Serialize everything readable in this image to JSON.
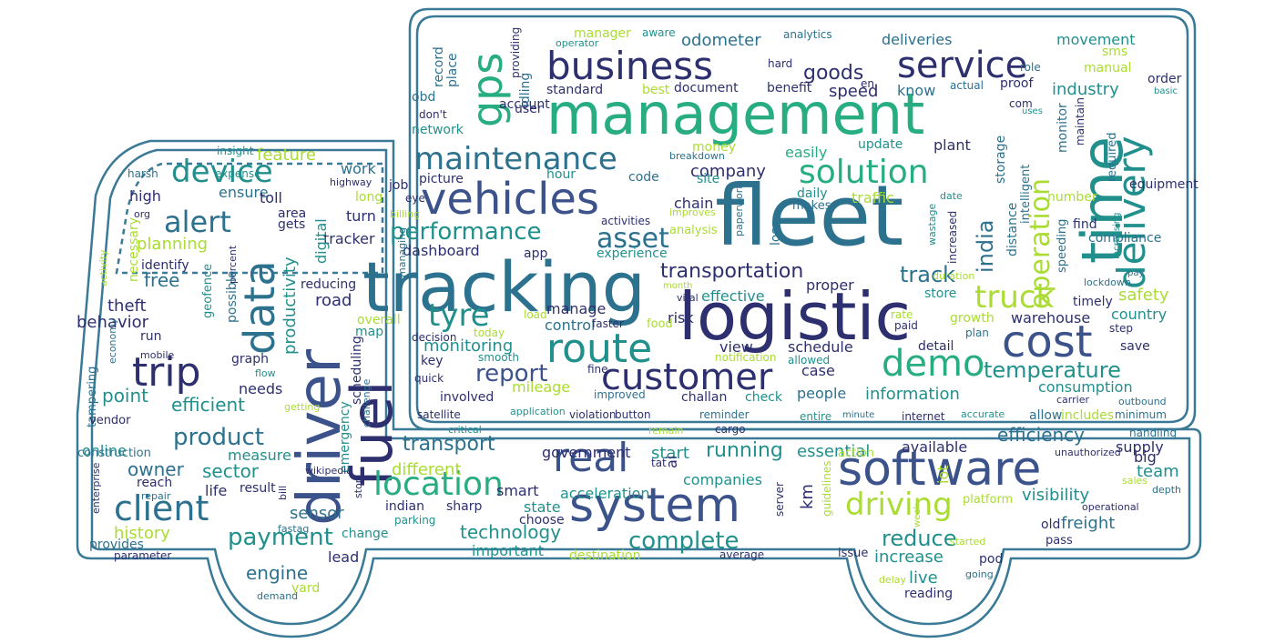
{
  "palette": {
    "outline": "#3a7a96",
    "d1": "#2d2f6e",
    "d2": "#3b528b",
    "m1": "#2c718e",
    "m2": "#21908d",
    "m3": "#27ad81",
    "l1": "#5cc863",
    "l2": "#aadc32",
    "l3": "#d2e21b"
  },
  "words": [
    {
      "t": "management",
      "c": "m3"
    },
    {
      "t": "fleet",
      "c": "m1"
    },
    {
      "t": "tracking",
      "c": "m1"
    },
    {
      "t": "logistic",
      "c": "d1"
    },
    {
      "t": "driver",
      "c": "d2"
    },
    {
      "t": "system",
      "c": "d2"
    },
    {
      "t": "software",
      "c": "d2"
    },
    {
      "t": "fuel",
      "c": "d1"
    },
    {
      "t": "time",
      "c": "m2"
    },
    {
      "t": "vehicles",
      "c": "d2"
    },
    {
      "t": "business",
      "c": "d1"
    },
    {
      "t": "service",
      "c": "d1"
    },
    {
      "t": "customer",
      "c": "d1"
    },
    {
      "t": "cost",
      "c": "d2"
    },
    {
      "t": "real",
      "c": "d2"
    },
    {
      "t": "route",
      "c": "m2"
    },
    {
      "t": "delivery",
      "c": "m2"
    },
    {
      "t": "gps",
      "c": "m3"
    },
    {
      "t": "data",
      "c": "m1"
    },
    {
      "t": "trip",
      "c": "d1"
    },
    {
      "t": "location",
      "c": "m3"
    },
    {
      "t": "client",
      "c": "m1"
    },
    {
      "t": "maintenance",
      "c": "m1"
    },
    {
      "t": "solution",
      "c": "m3"
    },
    {
      "t": "truck",
      "c": "l2"
    },
    {
      "t": "driving",
      "c": "l2"
    },
    {
      "t": "demo",
      "c": "m3"
    },
    {
      "t": "operation",
      "c": "l2"
    },
    {
      "t": "device",
      "c": "m2"
    },
    {
      "t": "alert",
      "c": "m1"
    },
    {
      "t": "tyre",
      "c": "m2"
    },
    {
      "t": "asset",
      "c": "m1"
    },
    {
      "t": "performance",
      "c": "m2"
    },
    {
      "t": "report",
      "c": "d2"
    },
    {
      "t": "complete",
      "c": "m2"
    },
    {
      "t": "payment",
      "c": "m2"
    },
    {
      "t": "product",
      "c": "m1"
    },
    {
      "t": "transportation",
      "c": "d1"
    },
    {
      "t": "temperature",
      "c": "m2"
    },
    {
      "t": "running",
      "c": "m2"
    },
    {
      "t": "goods",
      "c": "d1"
    },
    {
      "t": "track",
      "c": "m1"
    },
    {
      "t": "india",
      "c": "m1"
    },
    {
      "t": "transport",
      "c": "m1"
    },
    {
      "t": "efficiency",
      "c": "m1"
    },
    {
      "t": "reduce",
      "c": "m2"
    },
    {
      "t": "technology",
      "c": "m2"
    },
    {
      "t": "sector",
      "c": "m2"
    },
    {
      "t": "owner",
      "c": "m1"
    },
    {
      "t": "engine",
      "c": "m1"
    },
    {
      "t": "point",
      "c": "m2"
    },
    {
      "t": "efficient",
      "c": "m2"
    },
    {
      "t": "feature",
      "c": "l2"
    },
    {
      "t": "planning",
      "c": "l2"
    },
    {
      "t": "history",
      "c": "l2"
    },
    {
      "t": "odometer",
      "c": "m1"
    },
    {
      "t": "deliveries",
      "c": "m1"
    },
    {
      "t": "movement",
      "c": "m2"
    },
    {
      "t": "speed",
      "c": "d1"
    },
    {
      "t": "know",
      "c": "m1"
    },
    {
      "t": "industry",
      "c": "m2"
    },
    {
      "t": "company",
      "c": "d1"
    },
    {
      "t": "dashboard",
      "c": "d1"
    },
    {
      "t": "monitoring",
      "c": "m2"
    },
    {
      "t": "information",
      "c": "m2"
    },
    {
      "t": "consumption",
      "c": "m2"
    },
    {
      "t": "visibility",
      "c": "m2"
    },
    {
      "t": "safety",
      "c": "l2"
    },
    {
      "t": "warehouse",
      "c": "d1"
    },
    {
      "t": "country",
      "c": "m2"
    },
    {
      "t": "freight",
      "c": "m1"
    },
    {
      "t": "supply",
      "c": "d1"
    },
    {
      "t": "team",
      "c": "m2"
    },
    {
      "t": "increase",
      "c": "m2"
    },
    {
      "t": "live",
      "c": "m2"
    },
    {
      "t": "productivity",
      "c": "m2"
    },
    {
      "t": "sensor",
      "c": "m1"
    },
    {
      "t": "free",
      "c": "m1"
    },
    {
      "t": "behavior",
      "c": "d1"
    },
    {
      "t": "theft",
      "c": "d1"
    },
    {
      "t": "high",
      "c": "d1"
    },
    {
      "t": "ensure",
      "c": "m1"
    },
    {
      "t": "toll",
      "c": "d1"
    },
    {
      "t": "work",
      "c": "m1"
    },
    {
      "t": "turn",
      "c": "d1"
    },
    {
      "t": "tracker",
      "c": "d1"
    },
    {
      "t": "road",
      "c": "d1"
    },
    {
      "t": "digital",
      "c": "m2"
    },
    {
      "t": "reducing",
      "c": "d1"
    },
    {
      "t": "manage",
      "c": "d1"
    },
    {
      "t": "risk",
      "c": "d1"
    },
    {
      "t": "control",
      "c": "m1"
    },
    {
      "t": "view",
      "c": "d1"
    },
    {
      "t": "schedule",
      "c": "d1"
    },
    {
      "t": "case",
      "c": "d1"
    },
    {
      "t": "people",
      "c": "m1"
    },
    {
      "t": "check",
      "c": "m2"
    },
    {
      "t": "challan",
      "c": "d1"
    },
    {
      "t": "mileage",
      "c": "l2"
    },
    {
      "t": "improved",
      "c": "m1"
    },
    {
      "t": "involved",
      "c": "d1"
    },
    {
      "t": "effective",
      "c": "m2"
    },
    {
      "t": "proper",
      "c": "d1"
    },
    {
      "t": "store",
      "c": "m2"
    },
    {
      "t": "traffic",
      "c": "l2"
    },
    {
      "t": "daily",
      "c": "m2"
    },
    {
      "t": "easily",
      "c": "m3"
    },
    {
      "t": "update",
      "c": "m2"
    },
    {
      "t": "plant",
      "c": "d1"
    },
    {
      "t": "money",
      "c": "l2"
    },
    {
      "t": "chain",
      "c": "d1"
    },
    {
      "t": "code",
      "c": "m1"
    },
    {
      "t": "hour",
      "c": "m2"
    },
    {
      "t": "picture",
      "c": "d1"
    },
    {
      "t": "account",
      "c": "d1"
    },
    {
      "t": "user",
      "c": "d1"
    },
    {
      "t": "benefit",
      "c": "d1"
    },
    {
      "t": "document",
      "c": "d1"
    },
    {
      "t": "best",
      "c": "l2"
    },
    {
      "t": "standard",
      "c": "d1"
    },
    {
      "t": "manual",
      "c": "l2"
    },
    {
      "t": "sms",
      "c": "l2"
    },
    {
      "t": "order",
      "c": "d1"
    },
    {
      "t": "role",
      "c": "m1"
    },
    {
      "t": "proof",
      "c": "d1"
    },
    {
      "t": "actual",
      "c": "m1"
    },
    {
      "t": "place",
      "c": "m1"
    },
    {
      "t": "record",
      "c": "m1"
    },
    {
      "t": "obd",
      "c": "m1"
    },
    {
      "t": "idling",
      "c": "m1"
    },
    {
      "t": "providing",
      "c": "d1"
    },
    {
      "t": "network",
      "c": "m2"
    },
    {
      "t": "don't",
      "c": "d1"
    },
    {
      "t": "manager",
      "c": "l2"
    },
    {
      "t": "analytics",
      "c": "m1"
    },
    {
      "t": "aware",
      "c": "m2"
    },
    {
      "t": "operator",
      "c": "m2"
    },
    {
      "t": "hard",
      "c": "d1"
    },
    {
      "t": "en",
      "c": "d1"
    },
    {
      "t": "com",
      "c": "d1"
    },
    {
      "t": "uses",
      "c": "m2"
    },
    {
      "t": "basic",
      "c": "m2"
    },
    {
      "t": "monitor",
      "c": "m1"
    },
    {
      "t": "maintain",
      "c": "d1"
    },
    {
      "t": "equipment",
      "c": "d1"
    },
    {
      "t": "required",
      "c": "m1"
    },
    {
      "t": "compliance",
      "c": "m1"
    },
    {
      "t": "distance",
      "c": "m1"
    },
    {
      "t": "intelligent",
      "c": "m1"
    },
    {
      "t": "storage",
      "c": "m1"
    },
    {
      "t": "number",
      "c": "l2"
    },
    {
      "t": "timely",
      "c": "d1"
    },
    {
      "t": "speeding",
      "c": "m1"
    },
    {
      "t": "find",
      "c": "d1"
    },
    {
      "t": "increased",
      "c": "d1"
    },
    {
      "t": "increasing",
      "c": "m2"
    },
    {
      "t": "lockdown",
      "c": "m1"
    },
    {
      "t": "pay",
      "c": "m1"
    },
    {
      "t": "step",
      "c": "d1"
    },
    {
      "t": "save",
      "c": "d1"
    },
    {
      "t": "growth",
      "c": "l2"
    },
    {
      "t": "plan",
      "c": "m1"
    },
    {
      "t": "rate",
      "c": "l2"
    },
    {
      "t": "paid",
      "c": "d1"
    },
    {
      "t": "detail",
      "c": "d1"
    },
    {
      "t": "loss",
      "c": "m1"
    },
    {
      "t": "makes",
      "c": "m1"
    },
    {
      "t": "paperwork",
      "c": "m1"
    },
    {
      "t": "wastage",
      "c": "m2"
    },
    {
      "t": "date",
      "c": "m2"
    },
    {
      "t": "duration",
      "c": "l2"
    },
    {
      "t": "vital",
      "c": "d1"
    },
    {
      "t": "month",
      "c": "l2"
    },
    {
      "t": "faster",
      "c": "d1"
    },
    {
      "t": "food",
      "c": "l2"
    },
    {
      "t": "analysis",
      "c": "l2"
    },
    {
      "t": "experience",
      "c": "m2"
    },
    {
      "t": "activities",
      "c": "d1"
    },
    {
      "t": "improves",
      "c": "l2"
    },
    {
      "t": "site",
      "c": "m2"
    },
    {
      "t": "breakdown",
      "c": "m1"
    },
    {
      "t": "app",
      "c": "d1"
    },
    {
      "t": "eye",
      "c": "d1"
    },
    {
      "t": "job",
      "c": "d1"
    },
    {
      "t": "billing",
      "c": "l2"
    },
    {
      "t": "area",
      "c": "d1"
    },
    {
      "t": "gets",
      "c": "d1"
    },
    {
      "t": "long",
      "c": "l2"
    },
    {
      "t": "highway",
      "c": "d1"
    },
    {
      "t": "org",
      "c": "d1"
    },
    {
      "t": "expense",
      "c": "m2"
    },
    {
      "t": "insight",
      "c": "m2"
    },
    {
      "t": "harsh",
      "c": "m1"
    },
    {
      "t": "identify",
      "c": "d1"
    },
    {
      "t": "necessary",
      "c": "l2"
    },
    {
      "t": "activity",
      "c": "l2"
    },
    {
      "t": "economy",
      "c": "m1"
    },
    {
      "t": "run",
      "c": "d1"
    },
    {
      "t": "mobile",
      "c": "d1"
    },
    {
      "t": "geofence",
      "c": "m2"
    },
    {
      "t": "percent",
      "c": "d1"
    },
    {
      "t": "possible",
      "c": "m1"
    },
    {
      "t": "graph",
      "c": "d1"
    },
    {
      "t": "flow",
      "c": "m2"
    },
    {
      "t": "needs",
      "c": "d1"
    },
    {
      "t": "tampering",
      "c": "m1"
    },
    {
      "t": "vendor",
      "c": "d1"
    },
    {
      "t": "getting",
      "c": "l2"
    },
    {
      "t": "managing",
      "c": "m1"
    },
    {
      "t": "map",
      "c": "m2"
    },
    {
      "t": "overall",
      "c": "l2"
    },
    {
      "t": "decision",
      "c": "d1"
    },
    {
      "t": "load",
      "c": "l2"
    },
    {
      "t": "today",
      "c": "l2"
    },
    {
      "t": "key",
      "c": "d1"
    },
    {
      "t": "smooth",
      "c": "m2"
    },
    {
      "t": "quick",
      "c": "d1"
    },
    {
      "t": "notification",
      "c": "l2"
    },
    {
      "t": "allowed",
      "c": "m2"
    },
    {
      "t": "fine",
      "c": "d1"
    },
    {
      "t": "scheduling",
      "c": "d1"
    },
    {
      "t": "challenge",
      "c": "m1"
    },
    {
      "t": "satellite",
      "c": "d1"
    },
    {
      "t": "application",
      "c": "m2"
    },
    {
      "t": "violation",
      "c": "d1"
    },
    {
      "t": "button",
      "c": "d1"
    },
    {
      "t": "reminder",
      "c": "m1"
    },
    {
      "t": "entire",
      "c": "m2"
    },
    {
      "t": "minute",
      "c": "m1"
    },
    {
      "t": "internet",
      "c": "d1"
    },
    {
      "t": "accurate",
      "c": "m2"
    },
    {
      "t": "allow",
      "c": "m1"
    },
    {
      "t": "includes",
      "c": "l2"
    },
    {
      "t": "minimum",
      "c": "m1"
    },
    {
      "t": "carrier",
      "c": "d1"
    },
    {
      "t": "outbound",
      "c": "m1"
    },
    {
      "t": "handling",
      "c": "m1"
    },
    {
      "t": "critical",
      "c": "m2"
    },
    {
      "t": "cargo",
      "c": "d1"
    },
    {
      "t": "remain",
      "c": "l2"
    },
    {
      "t": "start",
      "c": "m2"
    },
    {
      "t": "essential",
      "c": "m2"
    },
    {
      "t": "available",
      "c": "d1"
    },
    {
      "t": "government",
      "c": "d1"
    },
    {
      "t": "online",
      "c": "m2"
    },
    {
      "t": "construction",
      "c": "m1"
    },
    {
      "t": "measure",
      "c": "m2"
    },
    {
      "t": "ai",
      "c": "d1"
    },
    {
      "t": "tat",
      "c": "d1"
    },
    {
      "t": "smart",
      "c": "d1"
    },
    {
      "t": "different",
      "c": "l2"
    },
    {
      "t": "acceleration",
      "c": "m2"
    },
    {
      "t": "companies",
      "c": "m2"
    },
    {
      "t": "km",
      "c": "d1"
    },
    {
      "t": "action",
      "c": "l2"
    },
    {
      "t": "guidelines",
      "c": "l2"
    },
    {
      "t": "iot",
      "c": "l2"
    },
    {
      "t": "unauthorized",
      "c": "d1"
    },
    {
      "t": "big",
      "c": "d1"
    },
    {
      "t": "sales",
      "c": "l2"
    },
    {
      "t": "depth",
      "c": "m1"
    },
    {
      "t": "operational",
      "c": "d1"
    },
    {
      "t": "platform",
      "c": "l2"
    },
    {
      "t": "week",
      "c": "l2"
    },
    {
      "t": "started",
      "c": "l2"
    },
    {
      "t": "old",
      "c": "d1"
    },
    {
      "t": "pass",
      "c": "d1"
    },
    {
      "t": "pod",
      "c": "d1"
    },
    {
      "t": "going",
      "c": "m1"
    },
    {
      "t": "reading",
      "c": "d1"
    },
    {
      "t": "delay",
      "c": "l2"
    },
    {
      "t": "issue",
      "c": "d1"
    },
    {
      "t": "server",
      "c": "d1"
    },
    {
      "t": "average",
      "c": "d1"
    },
    {
      "t": "destination",
      "c": "l2"
    },
    {
      "t": "important",
      "c": "m2"
    },
    {
      "t": "indian",
      "c": "d1"
    },
    {
      "t": "sharp",
      "c": "d1"
    },
    {
      "t": "state",
      "c": "m2"
    },
    {
      "t": "choose",
      "c": "d1"
    },
    {
      "t": "parking",
      "c": "m2"
    },
    {
      "t": "stop",
      "c": "d1"
    },
    {
      "t": "emergency",
      "c": "m2"
    },
    {
      "t": "wikipedia",
      "c": "d1"
    },
    {
      "t": "fastag",
      "c": "m1"
    },
    {
      "t": "bill",
      "c": "d1"
    },
    {
      "t": "result",
      "c": "d1"
    },
    {
      "t": "life",
      "c": "d1"
    },
    {
      "t": "reach",
      "c": "d1"
    },
    {
      "t": "repair",
      "c": "m1"
    },
    {
      "t": "enterprise",
      "c": "d1"
    },
    {
      "t": "provides",
      "c": "m1"
    },
    {
      "t": "parameter",
      "c": "d1"
    },
    {
      "t": "lead",
      "c": "d1"
    },
    {
      "t": "yard",
      "c": "l2"
    },
    {
      "t": "demand",
      "c": "m1"
    },
    {
      "t": "change",
      "c": "m2"
    }
  ]
}
